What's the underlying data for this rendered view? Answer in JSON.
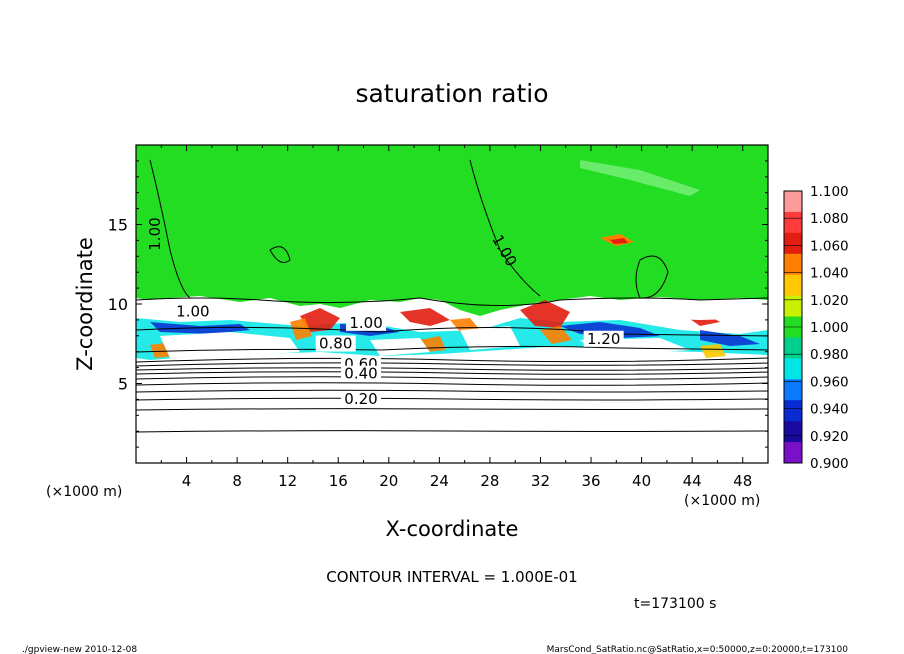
{
  "chart_data": {
    "type": "heatmap",
    "title": "saturation ratio",
    "xlabel": "X-coordinate",
    "ylabel": "Z-coordinate",
    "x_unit": "(×1000 m)",
    "xlim": [
      0,
      50
    ],
    "ylim": [
      0,
      20
    ],
    "x_ticks": [
      4,
      8,
      12,
      16,
      20,
      24,
      28,
      32,
      36,
      40,
      44,
      48
    ],
    "y_ticks": [
      5,
      10,
      15
    ],
    "colorbar": {
      "levels": [
        "1.100",
        "1.080",
        "1.060",
        "1.040",
        "1.020",
        "1.000",
        "0.980",
        "0.960",
        "0.940",
        "0.920",
        "0.900"
      ],
      "colors": [
        "#ff9a9a",
        "#ff3c3c",
        "#e21e10",
        "#ff7f00",
        "#ffc800",
        "#c8f000",
        "#22dd22",
        "#00d08c",
        "#00e6e6",
        "#0a7aff",
        "#0a2ad2",
        "#1a0aa0",
        "#7a10c8"
      ]
    },
    "contour_labels": [
      {
        "text": "1.00",
        "x": 1.9,
        "z": 14.4
      },
      {
        "text": "1.00",
        "x": 28.8,
        "z": 13.2
      },
      {
        "text": "1.00",
        "x": 4.5,
        "z": 9.2
      },
      {
        "text": "1.00",
        "x": 18.2,
        "z": 8.5
      },
      {
        "text": "1.20",
        "x": 37.0,
        "z": 7.5
      },
      {
        "text": "0.80",
        "x": 15.8,
        "z": 7.2
      },
      {
        "text": "0.60",
        "x": 17.8,
        "z": 5.9
      },
      {
        "text": "0.40",
        "x": 17.8,
        "z": 5.3
      },
      {
        "text": "0.20",
        "x": 17.8,
        "z": 3.7
      }
    ],
    "contour_interval_text": "CONTOUR INTERVAL = 1.000E-01",
    "time_text": "t=173100 s"
  },
  "footer": {
    "left": "./gpview-new  2010-12-08",
    "right": "MarsCond_SatRatio.nc@SatRatio,x=0:50000,z=0:20000,t=173100"
  }
}
